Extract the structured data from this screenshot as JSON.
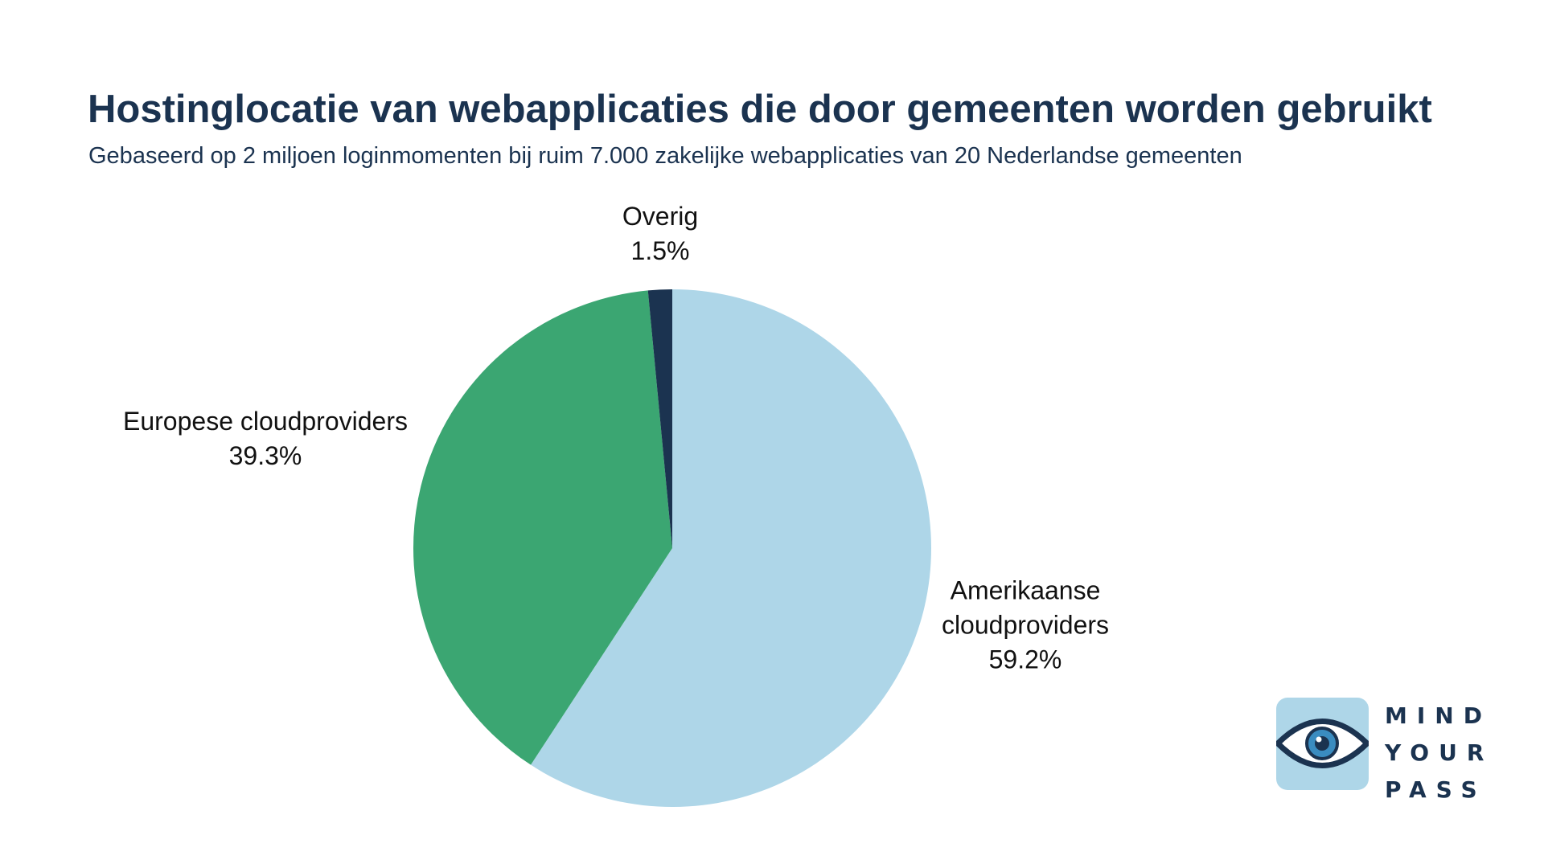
{
  "chart_data": {
    "type": "pie",
    "title": "Hostinglocatie van webapplicaties die door gemeenten worden gebruikt",
    "subtitle": "Gebaseerd op 2 miljoen loginmomenten bij ruim 7.000 zakelijke webapplicaties van 20 Nederlandse gemeenten",
    "slices": [
      {
        "label": [
          "Amerikaanse",
          "cloudproviders"
        ],
        "value": 59.2,
        "value_label": "59.2%",
        "color": "#aed6e8"
      },
      {
        "label": [
          "Europese cloudproviders"
        ],
        "value": 39.3,
        "value_label": "39.3%",
        "color": "#3ba672"
      },
      {
        "label": [
          "Overig"
        ],
        "value": 1.5,
        "value_label": "1.5%",
        "color": "#1b3350"
      }
    ],
    "start_angle": "12 o'clock",
    "direction": "clockwise"
  },
  "logo": {
    "lines": [
      "MIND",
      "YOUR",
      "PASS"
    ],
    "icon": "eye-icon",
    "box_color": "#aed6e8",
    "ink_color": "#1b3350",
    "iris_color": "#3a8cc0"
  },
  "colors": {
    "title": "#1b3350",
    "background": "#ffffff"
  }
}
